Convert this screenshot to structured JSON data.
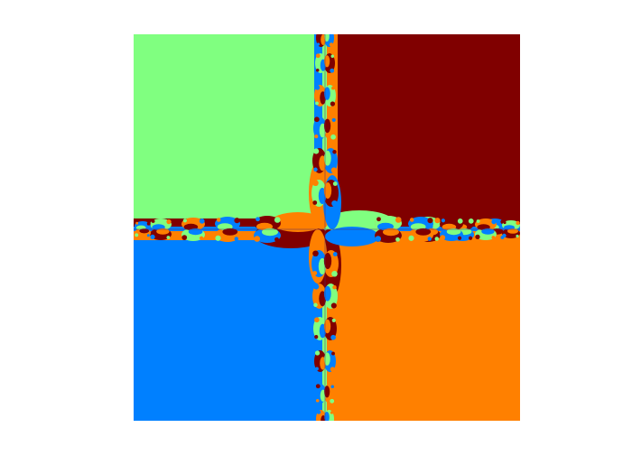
{
  "image": {
    "kind": "fractal-basin-of-attraction",
    "colors": {
      "top_left": "#80ff80",
      "top_right": "#800000",
      "bottom_left": "#0080ff",
      "bottom_right": "#ff8000",
      "background": "#ffffff"
    }
  }
}
